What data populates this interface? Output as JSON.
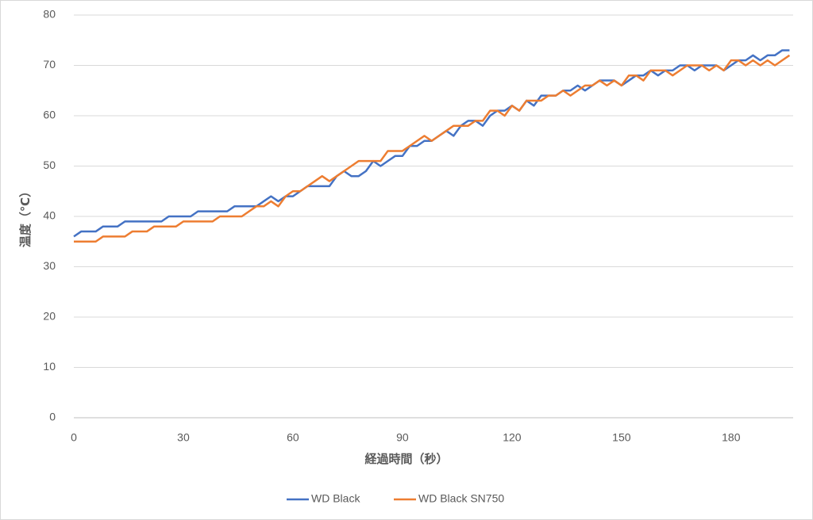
{
  "chart_data": {
    "type": "line",
    "xlabel": "経過時間（秒）",
    "ylabel": "温度（℃）",
    "x": [
      0,
      2,
      4,
      6,
      8,
      10,
      12,
      14,
      16,
      18,
      20,
      22,
      24,
      26,
      28,
      30,
      32,
      34,
      36,
      38,
      40,
      42,
      44,
      46,
      48,
      50,
      52,
      54,
      56,
      58,
      60,
      62,
      64,
      66,
      68,
      70,
      72,
      74,
      76,
      78,
      80,
      82,
      84,
      86,
      88,
      90,
      92,
      94,
      96,
      98,
      100,
      102,
      104,
      106,
      108,
      110,
      112,
      114,
      116,
      118,
      120,
      122,
      124,
      126,
      128,
      130,
      132,
      134,
      136,
      138,
      140,
      142,
      144,
      146,
      148,
      150,
      152,
      154,
      156,
      158,
      160,
      162,
      164,
      166,
      168,
      170,
      172,
      174,
      176,
      178,
      180,
      182,
      184,
      186,
      188,
      190,
      192,
      194,
      196
    ],
    "series": [
      {
        "name": "WD Black",
        "color": "#4472c4",
        "values": [
          36,
          37,
          37,
          37,
          38,
          38,
          38,
          39,
          39,
          39,
          39,
          39,
          39,
          40,
          40,
          40,
          40,
          41,
          41,
          41,
          41,
          41,
          42,
          42,
          42,
          42,
          43,
          44,
          43,
          44,
          44,
          45,
          46,
          46,
          46,
          46,
          48,
          49,
          48,
          48,
          49,
          51,
          50,
          51,
          52,
          52,
          54,
          54,
          55,
          55,
          56,
          57,
          56,
          58,
          59,
          59,
          58,
          60,
          61,
          61,
          62,
          61,
          63,
          62,
          64,
          64,
          64,
          65,
          65,
          66,
          65,
          66,
          67,
          67,
          67,
          66,
          67,
          68,
          68,
          69,
          68,
          69,
          69,
          70,
          70,
          69,
          70,
          70,
          70,
          69,
          70,
          71,
          71,
          72,
          71,
          72,
          72,
          73,
          73
        ]
      },
      {
        "name": "WD Black SN750",
        "color": "#ed7d31",
        "values": [
          35,
          35,
          35,
          35,
          36,
          36,
          36,
          36,
          37,
          37,
          37,
          38,
          38,
          38,
          38,
          39,
          39,
          39,
          39,
          39,
          40,
          40,
          40,
          40,
          41,
          42,
          42,
          43,
          42,
          44,
          45,
          45,
          46,
          47,
          48,
          47,
          48,
          49,
          50,
          51,
          51,
          51,
          51,
          53,
          53,
          53,
          54,
          55,
          56,
          55,
          56,
          57,
          58,
          58,
          58,
          59,
          59,
          61,
          61,
          60,
          62,
          61,
          63,
          63,
          63,
          64,
          64,
          65,
          64,
          65,
          66,
          66,
          67,
          66,
          67,
          66,
          68,
          68,
          67,
          69,
          69,
          69,
          68,
          69,
          70,
          70,
          70,
          69,
          70,
          69,
          71,
          71,
          70,
          71,
          70,
          71,
          70,
          71,
          72
        ]
      }
    ],
    "xlim": [
      0,
      197
    ],
    "xticks": [
      0,
      30,
      60,
      90,
      120,
      150,
      180
    ],
    "ylim": [
      0,
      80
    ],
    "yticks": [
      0,
      10,
      20,
      30,
      40,
      50,
      60,
      70,
      80
    ],
    "grid": true,
    "legend": "bottom"
  }
}
